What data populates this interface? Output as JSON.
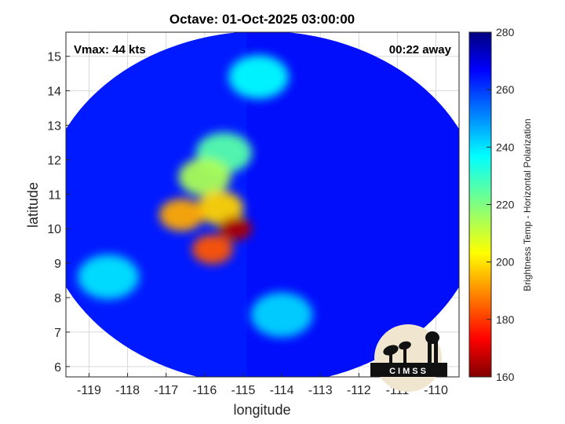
{
  "chart_data": {
    "type": "heatmap",
    "title": "Octave: 01-Oct-2025 03:00:00",
    "xlabel": "longitude",
    "ylabel": "latitude",
    "xlim": [
      -119.6,
      -109.4
    ],
    "ylim": [
      5.7,
      15.7
    ],
    "xticks": [
      -119,
      -118,
      -117,
      -116,
      -115,
      -114,
      -113,
      -112,
      -111,
      -110
    ],
    "yticks": [
      6,
      7,
      8,
      9,
      10,
      11,
      12,
      13,
      14,
      15
    ],
    "grid": true,
    "annotations": {
      "top_left": "Vmax: 44 kts",
      "top_right": "00:22 away"
    },
    "colorbar": {
      "label": "Brightness Temp - Horizontal Polarization",
      "range": [
        160,
        280
      ],
      "ticks": [
        160,
        180,
        200,
        220,
        240,
        260,
        280
      ],
      "colormap": "jet",
      "placement": "right"
    },
    "swath": {
      "center_lon": -114.5,
      "center_lat": 10.6,
      "radius_deg": 5.7
    },
    "cold_features": [
      {
        "lon": -115.2,
        "lat": 10.0,
        "value": 165
      },
      {
        "lon": -115.8,
        "lat": 9.4,
        "value": 185
      },
      {
        "lon": -116.6,
        "lat": 10.4,
        "value": 195
      },
      {
        "lon": -115.6,
        "lat": 10.6,
        "value": 200
      },
      {
        "lon": -116.0,
        "lat": 11.5,
        "value": 215
      },
      {
        "lon": -115.5,
        "lat": 12.2,
        "value": 225
      },
      {
        "lon": -114.6,
        "lat": 14.4,
        "value": 235
      },
      {
        "lon": -118.5,
        "lat": 8.6,
        "value": 238
      },
      {
        "lon": -114.0,
        "lat": 7.5,
        "value": 240
      }
    ],
    "background_value": 262
  },
  "logo": {
    "text": "CIMSS"
  },
  "colors": {
    "background": "#ffffff",
    "grid": "#d9d9d9"
  }
}
